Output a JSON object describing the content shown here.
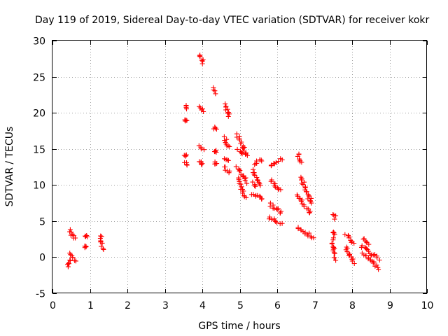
{
  "chart_data": {
    "type": "scatter",
    "title": "Day 119 of 2019, Sidereal Day-to-day VTEC variation (SDTVAR) for receiver kokr",
    "xlabel": "GPS time / hours",
    "ylabel": "SDTVAR / TECUs",
    "xlim": [
      0,
      10
    ],
    "ylim": [
      -5,
      30
    ],
    "xticks": [
      0,
      1,
      2,
      3,
      4,
      5,
      6,
      7,
      8,
      9,
      10
    ],
    "yticks": [
      -5,
      0,
      5,
      10,
      15,
      20,
      25,
      30
    ],
    "grid": true,
    "marker": "plus",
    "color": "#ff0000",
    "segments": [
      {
        "x0": 0.42,
        "x1": 0.48,
        "y0": -1.3,
        "y1": -0.3
      },
      {
        "x0": 0.45,
        "x1": 0.62,
        "y0": 0.4,
        "y1": -0.5
      },
      {
        "x0": 0.44,
        "x1": 0.62,
        "y0": 3.7,
        "y1": 2.6
      },
      {
        "x0": 0.9,
        "x1": 0.92,
        "y0": 3.1,
        "y1": 2.8
      },
      {
        "x0": 0.88,
        "x1": 0.9,
        "y0": 1.5,
        "y1": 1.3
      },
      {
        "x0": 1.27,
        "x1": 1.33,
        "y0": 3.0,
        "y1": 1.2
      },
      {
        "x0": 3.55,
        "x1": 3.6,
        "y0": 21.0,
        "y1": 20.5
      },
      {
        "x0": 3.55,
        "x1": 3.58,
        "y0": 19.1,
        "y1": 18.9
      },
      {
        "x0": 3.55,
        "x1": 3.58,
        "y0": 14.3,
        "y1": 14.1
      },
      {
        "x0": 3.55,
        "x1": 3.58,
        "y0": 13.0,
        "y1": 12.9
      },
      {
        "x0": 3.95,
        "x1": 4.02,
        "y0": 28.0,
        "y1": 26.8
      },
      {
        "x0": 3.95,
        "x1": 4.02,
        "y0": 20.8,
        "y1": 20.0
      },
      {
        "x0": 3.92,
        "x1": 4.05,
        "y0": 15.3,
        "y1": 15.0
      },
      {
        "x0": 3.93,
        "x1": 4.03,
        "y0": 13.4,
        "y1": 12.8
      },
      {
        "x0": 4.32,
        "x1": 4.35,
        "y0": 23.4,
        "y1": 22.8
      },
      {
        "x0": 4.33,
        "x1": 4.35,
        "y0": 18.0,
        "y1": 17.8
      },
      {
        "x0": 4.33,
        "x1": 4.35,
        "y0": 14.8,
        "y1": 14.7
      },
      {
        "x0": 4.33,
        "x1": 4.35,
        "y0": 13.1,
        "y1": 13.0
      },
      {
        "x0": 4.6,
        "x1": 4.72,
        "y0": 21.2,
        "y1": 19.5
      },
      {
        "x0": 4.6,
        "x1": 4.7,
        "y0": 16.5,
        "y1": 15.2
      },
      {
        "x0": 4.6,
        "x1": 4.7,
        "y0": 13.6,
        "y1": 13.3
      },
      {
        "x0": 4.6,
        "x1": 4.72,
        "y0": 12.5,
        "y1": 11.6
      },
      {
        "x0": 4.93,
        "x1": 5.18,
        "y0": 16.9,
        "y1": 14.4
      },
      {
        "x0": 4.95,
        "x1": 5.2,
        "y0": 14.8,
        "y1": 14.1
      },
      {
        "x0": 4.93,
        "x1": 5.2,
        "y0": 12.5,
        "y1": 10.4
      },
      {
        "x0": 4.95,
        "x1": 5.15,
        "y0": 11.0,
        "y1": 8.2
      },
      {
        "x0": 5.37,
        "x1": 5.6,
        "y0": 13.0,
        "y1": 13.5
      },
      {
        "x0": 5.35,
        "x1": 5.58,
        "y0": 12.0,
        "y1": 9.9
      },
      {
        "x0": 5.33,
        "x1": 5.62,
        "y0": 8.8,
        "y1": 8.1
      },
      {
        "x0": 5.35,
        "x1": 5.45,
        "y0": 10.3,
        "y1": 9.8
      },
      {
        "x0": 5.82,
        "x1": 6.1,
        "y0": 12.5,
        "y1": 13.6
      },
      {
        "x0": 5.82,
        "x1": 6.1,
        "y0": 10.6,
        "y1": 9.2
      },
      {
        "x0": 5.82,
        "x1": 6.12,
        "y0": 7.4,
        "y1": 6.0
      },
      {
        "x0": 5.8,
        "x1": 6.1,
        "y0": 5.5,
        "y1": 4.6
      },
      {
        "x0": 6.55,
        "x1": 6.63,
        "y0": 14.3,
        "y1": 13.1
      },
      {
        "x0": 6.62,
        "x1": 6.92,
        "y0": 11.0,
        "y1": 7.4
      },
      {
        "x0": 6.55,
        "x1": 6.9,
        "y0": 8.5,
        "y1": 6.0
      },
      {
        "x0": 6.55,
        "x1": 6.95,
        "y0": 4.2,
        "y1": 2.6
      },
      {
        "x0": 7.5,
        "x1": 7.56,
        "y0": 6.0,
        "y1": 5.4
      },
      {
        "x0": 7.48,
        "x1": 7.53,
        "y0": 3.6,
        "y1": 2.8
      },
      {
        "x0": 7.48,
        "x1": 7.55,
        "y0": 2.2,
        "y1": -0.3
      },
      {
        "x0": 7.83,
        "x1": 8.05,
        "y0": 3.0,
        "y1": 1.9
      },
      {
        "x0": 7.83,
        "x1": 8.05,
        "y0": 1.5,
        "y1": -0.8
      },
      {
        "x0": 8.28,
        "x1": 8.42,
        "y0": 2.6,
        "y1": 1.7
      },
      {
        "x0": 8.25,
        "x1": 8.7,
        "y0": 1.6,
        "y1": -0.3
      },
      {
        "x0": 8.3,
        "x1": 8.72,
        "y0": 0.5,
        "y1": -1.5
      }
    ]
  }
}
